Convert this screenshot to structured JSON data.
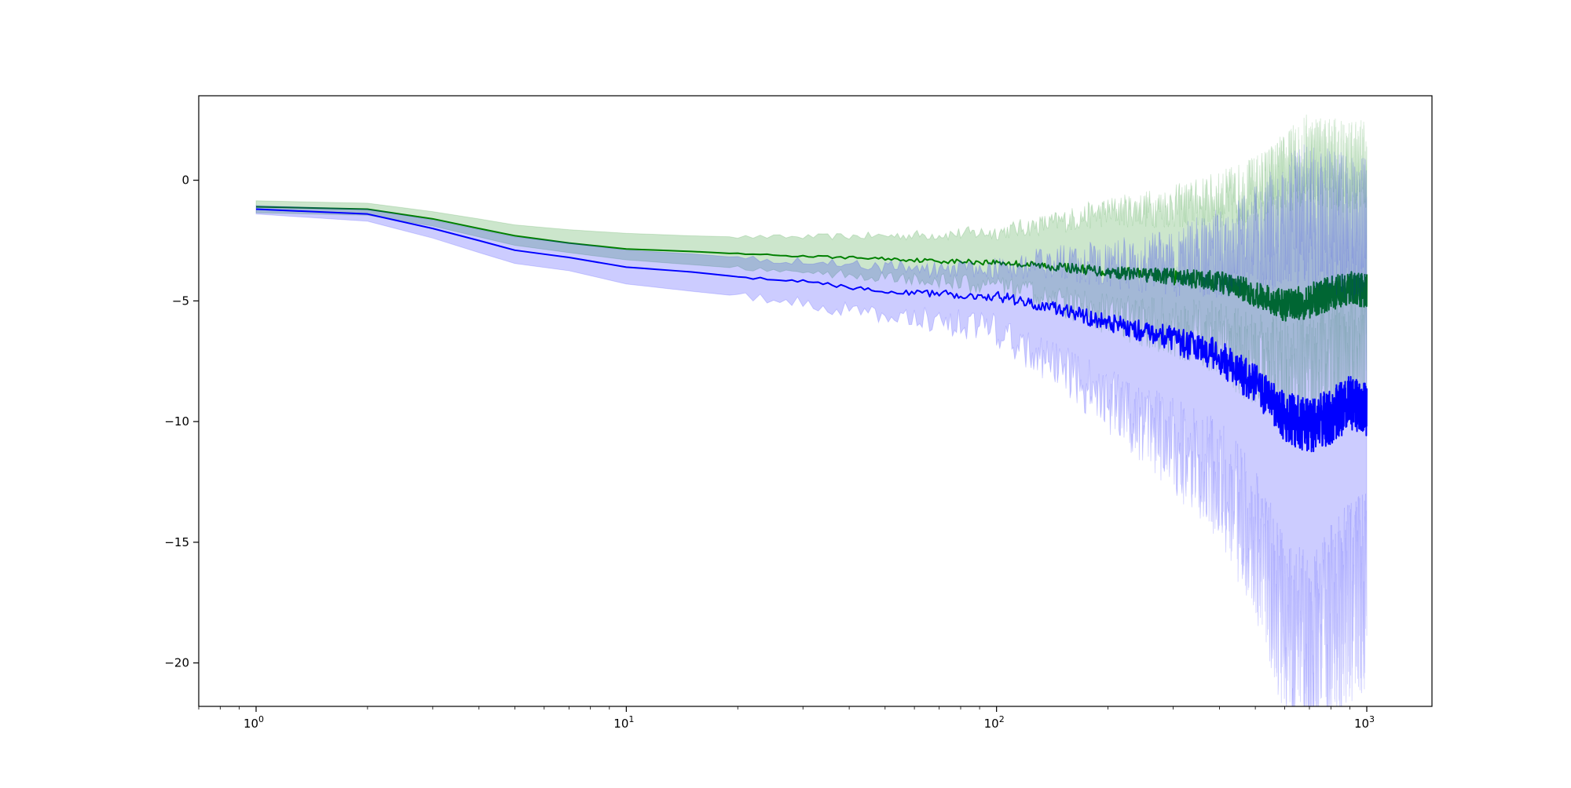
{
  "chart_data": {
    "type": "line",
    "title": "",
    "xlabel": "",
    "ylabel": "",
    "xscale": "log",
    "xlim": [
      0.7,
      1500
    ],
    "ylim": [
      -21.8,
      3.5
    ],
    "grid": false,
    "legend": "none",
    "x_ticks": [
      1,
      10,
      100,
      1000
    ],
    "x_tick_labels": [
      {
        "base": "10",
        "exp": "0"
      },
      {
        "base": "10",
        "exp": "1"
      },
      {
        "base": "10",
        "exp": "2"
      },
      {
        "base": "10",
        "exp": "3"
      }
    ],
    "y_ticks": [
      0,
      -5,
      -10,
      -15,
      -20
    ],
    "y_tick_labels": [
      "0",
      "−5",
      "−10",
      "−15",
      "−20"
    ],
    "series": [
      {
        "color": "#008000",
        "band_color": "#008000",
        "band_opacity": 0.2,
        "x": [
          1,
          2,
          3,
          4,
          5,
          7,
          10,
          15,
          20,
          30,
          50,
          70,
          100,
          150,
          200,
          300,
          400,
          500,
          600,
          700,
          800,
          900,
          1000
        ],
        "y": [
          -1.1,
          -1.2,
          -1.6,
          -2.0,
          -2.3,
          -2.6,
          -2.85,
          -2.95,
          -3.05,
          -3.15,
          -3.25,
          -3.35,
          -3.4,
          -3.6,
          -3.8,
          -4.0,
          -4.2,
          -4.7,
          -5.2,
          -5.0,
          -4.7,
          -4.5,
          -4.6
        ],
        "upper": [
          -0.85,
          -0.95,
          -1.3,
          -1.6,
          -1.85,
          -2.05,
          -2.2,
          -2.3,
          -2.35,
          -2.35,
          -2.3,
          -2.25,
          -2.15,
          -1.7,
          -1.3,
          -1.1,
          -0.8,
          -0.4,
          0.3,
          1.0,
          0.7,
          0.5,
          0.8
        ],
        "lower": [
          -1.35,
          -1.45,
          -1.9,
          -2.35,
          -2.7,
          -3.0,
          -3.3,
          -3.5,
          -3.65,
          -3.8,
          -4.0,
          -4.2,
          -4.4,
          -5.0,
          -5.6,
          -6.1,
          -6.6,
          -7.5,
          -8.0,
          -8.1,
          -7.8,
          -7.6,
          -7.4
        ]
      },
      {
        "color": "#0000ff",
        "band_color": "#0000ff",
        "band_opacity": 0.2,
        "x": [
          1,
          2,
          3,
          4,
          5,
          7,
          10,
          15,
          20,
          30,
          50,
          70,
          100,
          150,
          200,
          300,
          400,
          500,
          600,
          700,
          800,
          900,
          1000
        ],
        "y": [
          -1.2,
          -1.4,
          -2.0,
          -2.5,
          -2.9,
          -3.2,
          -3.6,
          -3.8,
          -4.0,
          -4.2,
          -4.6,
          -4.7,
          -4.8,
          -5.4,
          -5.9,
          -6.6,
          -7.3,
          -8.5,
          -9.8,
          -10.2,
          -9.8,
          -9.2,
          -9.5
        ],
        "upper": [
          -1.05,
          -1.2,
          -1.65,
          -2.05,
          -2.35,
          -2.6,
          -2.9,
          -3.05,
          -3.2,
          -3.35,
          -3.6,
          -3.7,
          -3.6,
          -3.4,
          -3.5,
          -3.4,
          -3.0,
          -2.5,
          -1.7,
          -1.5,
          -1.7,
          -1.9,
          -2.0
        ],
        "lower": [
          -1.4,
          -1.7,
          -2.4,
          -3.0,
          -3.45,
          -3.75,
          -4.3,
          -4.6,
          -4.8,
          -5.1,
          -5.6,
          -5.8,
          -6.2,
          -7.8,
          -9.2,
          -11.0,
          -12.5,
          -15.0,
          -18.5,
          -19.8,
          -18.5,
          -17.5,
          -17.0
        ]
      }
    ]
  }
}
